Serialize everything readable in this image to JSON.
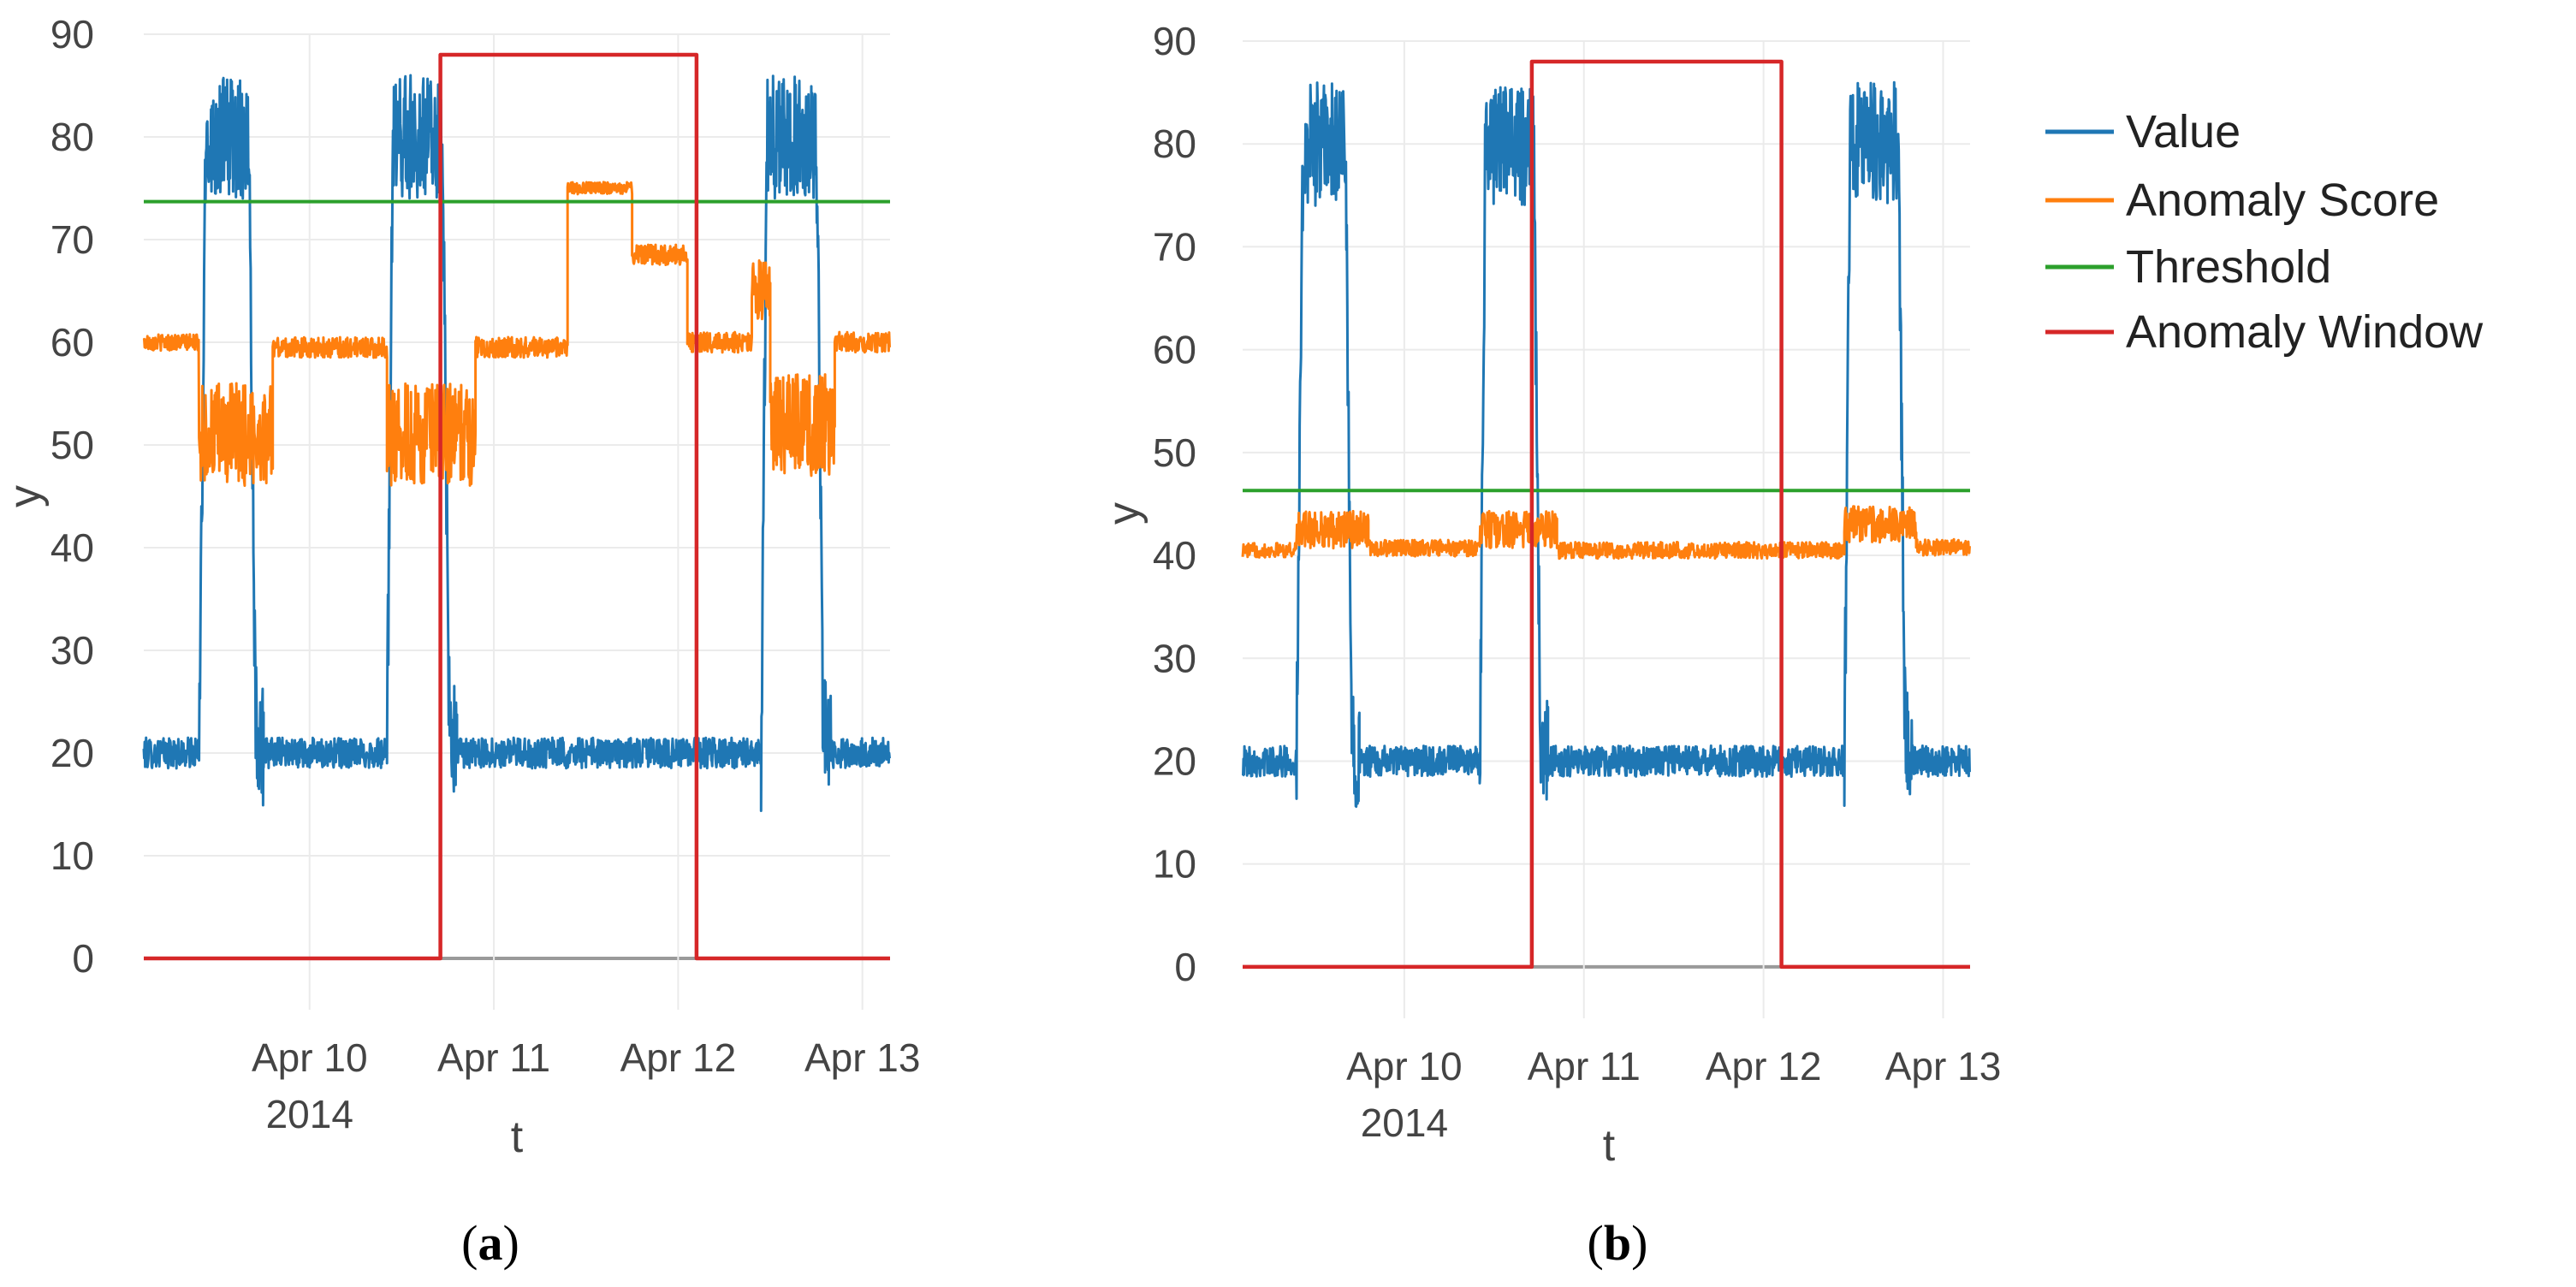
{
  "colors": {
    "value": "#1f77b4",
    "anomaly_score": "#ff7f0e",
    "threshold": "#2ca02c",
    "anomaly_window": "#d62728"
  },
  "legend": [
    "Value",
    "Anomaly Score",
    "Threshold",
    "Anomaly Window"
  ],
  "chart_data": [
    {
      "type": "line",
      "panel_label": "a",
      "xlabel": "t",
      "ylabel": "y",
      "x_unit": "days since 2014-04-09 00:00",
      "xlim": [
        0.1,
        4.15
      ],
      "ylim": [
        -5,
        90
      ],
      "yticks": [
        0,
        10,
        20,
        30,
        40,
        50,
        60,
        70,
        80,
        90
      ],
      "xticks": [
        {
          "x": 1.0,
          "label": "Apr 10",
          "sublabel": "2014"
        },
        {
          "x": 2.0,
          "label": "Apr 11"
        },
        {
          "x": 3.0,
          "label": "Apr 12"
        },
        {
          "x": 4.0,
          "label": "Apr 13"
        }
      ],
      "series": [
        {
          "name": "Value",
          "segments": [
            {
              "x0": 0.1,
              "x1": 0.4,
              "level": 20,
              "noise": 1.5
            },
            {
              "x0": 0.4,
              "x1": 0.75,
              "level": 80,
              "noise": 6,
              "ramp_in": 0.06,
              "ramp_out": 0.08
            },
            {
              "x0": 0.75,
              "x1": 1.42,
              "level": 20,
              "noise": 1.5
            },
            {
              "x0": 1.42,
              "x1": 1.8,
              "level": 80,
              "noise": 6,
              "ramp_in": 0.05,
              "ramp_out": 0.08
            },
            {
              "x0": 1.8,
              "x1": 3.45,
              "level": 20,
              "noise": 1.5
            },
            {
              "x0": 3.45,
              "x1": 3.83,
              "level": 80,
              "noise": 6,
              "ramp_in": 0.05,
              "ramp_out": 0.08
            },
            {
              "x0": 3.83,
              "x1": 4.15,
              "level": 20,
              "noise": 1.5
            }
          ]
        },
        {
          "name": "Anomaly Score",
          "segments": [
            {
              "x0": 0.1,
              "x1": 0.4,
              "level": 60,
              "noise": 0.8
            },
            {
              "x0": 0.4,
              "x1": 0.8,
              "level": 51,
              "noise": 5
            },
            {
              "x0": 0.8,
              "x1": 1.42,
              "level": 59.5,
              "noise": 1
            },
            {
              "x0": 1.42,
              "x1": 1.9,
              "level": 51,
              "noise": 5
            },
            {
              "x0": 1.9,
              "x1": 2.4,
              "level": 59.5,
              "noise": 1
            },
            {
              "x0": 2.4,
              "x1": 2.75,
              "level": 75,
              "noise": 0.6
            },
            {
              "x0": 2.75,
              "x1": 3.05,
              "level": 68.5,
              "noise": 1
            },
            {
              "x0": 3.05,
              "x1": 3.4,
              "level": 60,
              "noise": 1
            },
            {
              "x0": 3.4,
              "x1": 3.5,
              "level": 65,
              "noise": 3
            },
            {
              "x0": 3.5,
              "x1": 3.85,
              "level": 52,
              "noise": 5
            },
            {
              "x0": 3.85,
              "x1": 4.15,
              "level": 60,
              "noise": 1
            }
          ]
        },
        {
          "name": "Threshold",
          "x": [
            0.1,
            4.15
          ],
          "y": [
            73.7,
            73.7
          ]
        },
        {
          "name": "Anomaly Window",
          "x": [
            0.1,
            1.71,
            1.71,
            3.1,
            3.1,
            4.15
          ],
          "y": [
            0,
            0,
            88,
            88,
            0,
            0
          ]
        }
      ]
    },
    {
      "type": "line",
      "panel_label": "b",
      "xlabel": "t",
      "ylabel": "y",
      "x_unit": "days since 2014-04-09 00:00",
      "xlim": [
        0.1,
        4.15
      ],
      "ylim": [
        -5,
        90
      ],
      "yticks": [
        0,
        10,
        20,
        30,
        40,
        50,
        60,
        70,
        80,
        90
      ],
      "xticks": [
        {
          "x": 1.0,
          "label": "Apr 10",
          "sublabel": "2014"
        },
        {
          "x": 2.0,
          "label": "Apr 11"
        },
        {
          "x": 3.0,
          "label": "Apr 12"
        },
        {
          "x": 4.0,
          "label": "Apr 13"
        }
      ],
      "series": [
        {
          "name": "Value",
          "segments": [
            {
              "x0": 0.1,
              "x1": 0.4,
              "level": 20,
              "noise": 1.5
            },
            {
              "x0": 0.4,
              "x1": 0.75,
              "level": 80,
              "noise": 6,
              "ramp_in": 0.06,
              "ramp_out": 0.08
            },
            {
              "x0": 0.75,
              "x1": 1.42,
              "level": 20,
              "noise": 1.5
            },
            {
              "x0": 1.42,
              "x1": 1.8,
              "level": 80,
              "noise": 6,
              "ramp_in": 0.05,
              "ramp_out": 0.08
            },
            {
              "x0": 1.8,
              "x1": 3.45,
              "level": 20,
              "noise": 1.5
            },
            {
              "x0": 3.45,
              "x1": 3.83,
              "level": 80,
              "noise": 6,
              "ramp_in": 0.05,
              "ramp_out": 0.08
            },
            {
              "x0": 3.83,
              "x1": 4.15,
              "level": 20,
              "noise": 1.5
            }
          ]
        },
        {
          "name": "Anomaly Score",
          "segments": [
            {
              "x0": 0.1,
              "x1": 0.4,
              "level": 40.5,
              "noise": 0.7
            },
            {
              "x0": 0.4,
              "x1": 0.8,
              "level": 42.5,
              "noise": 1.8
            },
            {
              "x0": 0.8,
              "x1": 1.42,
              "level": 40.7,
              "noise": 0.8
            },
            {
              "x0": 1.42,
              "x1": 1.85,
              "level": 42.5,
              "noise": 1.8
            },
            {
              "x0": 1.85,
              "x1": 3.45,
              "level": 40.5,
              "noise": 0.8
            },
            {
              "x0": 3.45,
              "x1": 3.85,
              "level": 43,
              "noise": 1.8
            },
            {
              "x0": 3.85,
              "x1": 4.15,
              "level": 40.8,
              "noise": 0.8
            }
          ]
        },
        {
          "name": "Threshold",
          "x": [
            0.1,
            4.15
          ],
          "y": [
            46.3,
            46.3
          ]
        },
        {
          "name": "Anomaly Window",
          "x": [
            0.1,
            1.71,
            1.71,
            3.1,
            3.1,
            4.15
          ],
          "y": [
            0,
            0,
            88,
            88,
            0,
            0
          ]
        }
      ]
    }
  ]
}
